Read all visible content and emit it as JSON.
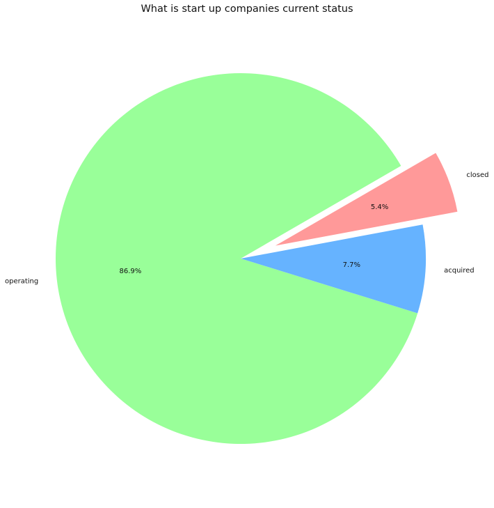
{
  "chart_data": {
    "type": "pie",
    "title": "What is start up companies current status",
    "categories": [
      "operating",
      "acquired",
      "closed"
    ],
    "values": [
      86.9,
      7.7,
      5.4
    ],
    "percent_labels": [
      "86.9%",
      "7.7%",
      "5.4%"
    ],
    "colors": [
      "#99ff99",
      "#66b3ff",
      "#ff9999"
    ],
    "explode": [
      0,
      0,
      0.2
    ],
    "legend": "none"
  }
}
